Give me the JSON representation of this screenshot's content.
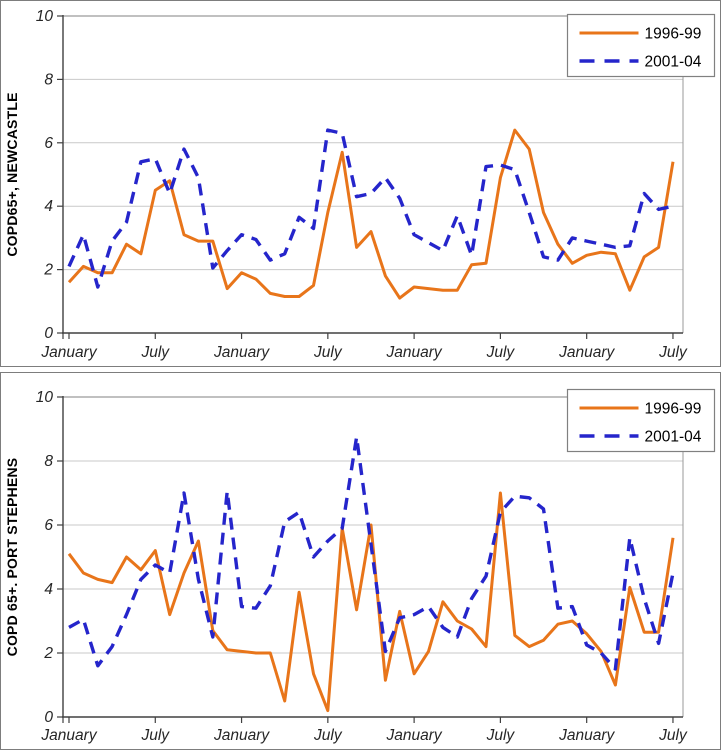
{
  "figure": {
    "background": "#ffffff",
    "panel_border_color": "#7d7d7d",
    "gridline_color": "#c9c9c9",
    "axis_color": "#404040",
    "plot_frame_color": "#9a9a9a"
  },
  "legend": {
    "entries": [
      {
        "label": "1996-99",
        "color": "#e8751a",
        "style": "solid"
      },
      {
        "label": "2001-04",
        "color": "#2525cb",
        "style": "dashed"
      }
    ],
    "position": "top-right",
    "border_color": "#808080",
    "background": "#ffffff"
  },
  "chart_data": [
    {
      "type": "line",
      "title": "",
      "xlabel": "",
      "ylabel": "COPD65+, NEWCASTLE",
      "ylim": [
        0,
        10
      ],
      "yticks": [
        0,
        2,
        4,
        6,
        8,
        10
      ],
      "ytick_labels": [
        "0",
        "2",
        "4",
        "6",
        "8",
        "10"
      ],
      "grid": true,
      "legend_position": "top-right",
      "x_unit": "month-index",
      "x_range": [
        0,
        42
      ],
      "x_ticks": {
        "positions": [
          0,
          6,
          12,
          18,
          24,
          30,
          36,
          42
        ],
        "labels": [
          "January",
          "July",
          "January",
          "July",
          "January",
          "July",
          "January",
          "July"
        ]
      },
      "series": [
        {
          "name": "1996-99",
          "color": "#e8751a",
          "style": "solid",
          "values": [
            1.6,
            2.1,
            1.9,
            1.9,
            2.8,
            2.5,
            4.5,
            4.8,
            3.1,
            2.9,
            2.9,
            1.4,
            1.9,
            1.7,
            1.25,
            1.15,
            1.15,
            1.5,
            3.8,
            5.7,
            2.7,
            3.2,
            1.8,
            1.1,
            1.45,
            1.4,
            1.35,
            1.35,
            2.15,
            2.2,
            4.9,
            6.4,
            5.8,
            3.8,
            2.8,
            2.2,
            2.45,
            2.55,
            2.5,
            1.35,
            2.4,
            2.7,
            5.4
          ]
        },
        {
          "name": "2001-04",
          "color": "#2525cb",
          "style": "dashed",
          "values": [
            2.1,
            3.1,
            1.45,
            2.9,
            3.5,
            5.4,
            5.5,
            4.4,
            5.8,
            4.9,
            2.05,
            2.6,
            3.1,
            2.95,
            2.3,
            2.5,
            3.65,
            3.3,
            6.4,
            6.3,
            4.3,
            4.4,
            4.9,
            4.25,
            3.1,
            2.85,
            2.6,
            3.7,
            2.45,
            5.25,
            5.3,
            5.15,
            3.8,
            2.4,
            2.3,
            3.0,
            2.9,
            2.8,
            2.7,
            2.75,
            4.4,
            3.9,
            4.0
          ]
        }
      ]
    },
    {
      "type": "line",
      "title": "",
      "xlabel": "",
      "ylabel": "COPD 65+. PORT STEPHENS",
      "ylim": [
        0,
        10
      ],
      "yticks": [
        0,
        2,
        4,
        6,
        8,
        10
      ],
      "ytick_labels": [
        "0",
        "2",
        "4",
        "6",
        "8",
        "10"
      ],
      "grid": true,
      "legend_position": "top-right",
      "x_unit": "month-index",
      "x_range": [
        0,
        42
      ],
      "x_ticks": {
        "positions": [
          0,
          6,
          12,
          18,
          24,
          30,
          36,
          42
        ],
        "labels": [
          "January",
          "July",
          "January",
          "July",
          "January",
          "July",
          "January",
          "July"
        ]
      },
      "series": [
        {
          "name": "1996-99",
          "color": "#e8751a",
          "style": "solid",
          "values": [
            5.1,
            4.5,
            4.3,
            4.2,
            5.0,
            4.6,
            5.2,
            3.2,
            4.5,
            5.5,
            2.7,
            2.1,
            2.05,
            2.0,
            2.0,
            0.5,
            3.9,
            1.35,
            0.2,
            5.9,
            3.35,
            6.0,
            1.15,
            3.3,
            1.35,
            2.05,
            3.6,
            3.0,
            2.75,
            2.2,
            7.0,
            2.55,
            2.2,
            2.4,
            2.9,
            3.0,
            2.6,
            2.05,
            1.0,
            4.05,
            2.65,
            2.65,
            5.6
          ]
        },
        {
          "name": "2001-04",
          "color": "#2525cb",
          "style": "dashed",
          "values": [
            2.8,
            3.05,
            1.6,
            2.2,
            3.2,
            4.3,
            4.75,
            4.5,
            7.0,
            4.3,
            2.5,
            7.05,
            3.45,
            3.4,
            4.1,
            6.1,
            6.4,
            5.0,
            5.5,
            5.9,
            8.75,
            5.4,
            2.05,
            3.1,
            3.2,
            3.45,
            2.8,
            2.5,
            3.7,
            4.4,
            6.4,
            6.9,
            6.85,
            6.5,
            3.4,
            3.45,
            2.25,
            2.0,
            1.5,
            5.6,
            3.7,
            2.3,
            4.5
          ]
        }
      ]
    }
  ]
}
